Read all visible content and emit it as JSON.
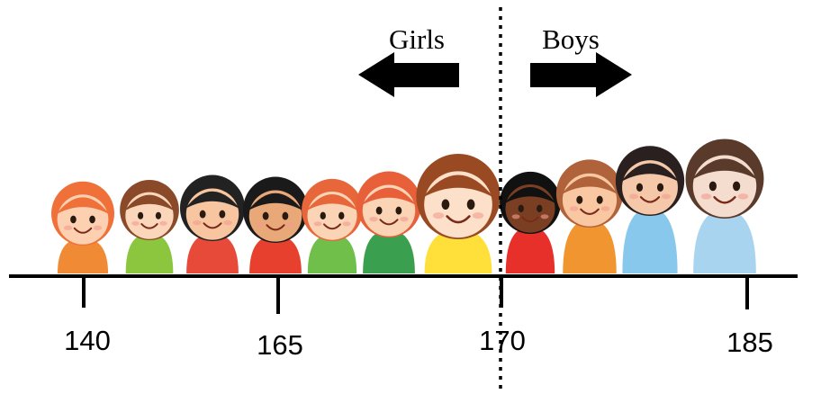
{
  "labels": {
    "girls": "Girls",
    "boys": "Boys"
  },
  "ticks": [
    {
      "value": "140"
    },
    {
      "value": "165"
    },
    {
      "value": "170"
    },
    {
      "value": "185"
    }
  ],
  "divider_value": "170",
  "colors": {
    "line": "#000000",
    "background": "#ffffff"
  },
  "children": [
    {
      "group": "girls",
      "hair": "#f0703a",
      "shirt": "#f08a35",
      "skin": "#fcd0b0"
    },
    {
      "group": "girls",
      "hair": "#8a4a2a",
      "shirt": "#8cc63f",
      "skin": "#fcd6bb"
    },
    {
      "group": "girls",
      "hair": "#222222",
      "shirt": "#e84a3a",
      "skin": "#f7c59f"
    },
    {
      "group": "girls",
      "hair": "#1a1a1a",
      "shirt": "#e8402f",
      "skin": "#e8a878"
    },
    {
      "group": "girls",
      "hair": "#e8673a",
      "shirt": "#6fbf4a",
      "skin": "#fbd3b5"
    },
    {
      "group": "girls",
      "hair": "#e8603a",
      "shirt": "#3aa050",
      "skin": "#fbd3b5"
    },
    {
      "group": "girls",
      "hair": "#9a4a22",
      "shirt": "#ffe03a",
      "skin": "#fde0c9"
    },
    {
      "group": "boys",
      "hair": "#111111",
      "shirt": "#e8302a",
      "skin": "#7a3f22"
    },
    {
      "group": "boys",
      "hair": "#b0623a",
      "shirt": "#f0952f",
      "skin": "#f9c8a2"
    },
    {
      "group": "boys",
      "hair": "#2a2020",
      "shirt": "#88c8ec",
      "skin": "#f4c8a8"
    },
    {
      "group": "boys",
      "hair": "#5a3a2a",
      "shirt": "#a8d4f0",
      "skin": "#f4dccf"
    }
  ]
}
